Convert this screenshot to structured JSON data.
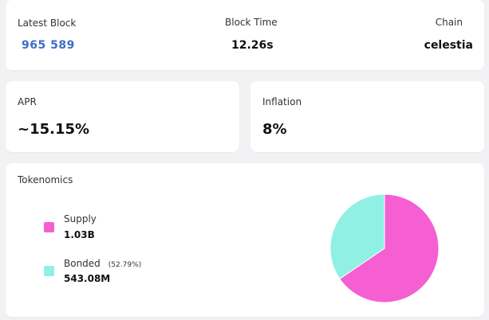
{
  "stats": {
    "latest_block": {
      "label": "Latest Block",
      "value": "965 589"
    },
    "block_time": {
      "label": "Block Time",
      "value": "12.26s"
    },
    "chain": {
      "label": "Chain",
      "value": "celestia"
    }
  },
  "apr": {
    "label": "APR",
    "value": "~15.15%"
  },
  "inflation": {
    "label": "Inflation",
    "value": "8%"
  },
  "tokenomics": {
    "title": "Tokenomics",
    "legend": [
      {
        "name": "Supply",
        "value": "1.03B",
        "color": "#f55fd2",
        "pct": ""
      },
      {
        "name": "Bonded",
        "value": "543.08M",
        "color": "#8ff0e3",
        "pct": "(52.79%)"
      }
    ]
  },
  "chart_data": {
    "type": "pie",
    "categories": [
      "Supply",
      "Bonded"
    ],
    "values": [
      1.03,
      0.54308
    ],
    "colors": [
      "#f55fd2",
      "#8ff0e3"
    ],
    "title": "",
    "legend_placement": "left"
  }
}
